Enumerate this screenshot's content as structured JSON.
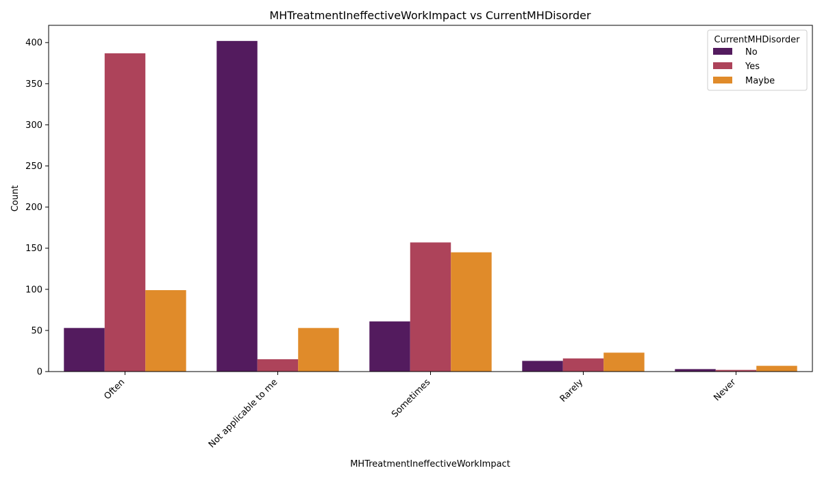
{
  "chart_data": {
    "type": "bar",
    "title": "MHTreatmentIneffectiveWorkImpact vs CurrentMHDisorder",
    "xlabel": "MHTreatmentIneffectiveWorkImpact",
    "ylabel": "Count",
    "categories": [
      "Often",
      "Not applicable to me",
      "Sometimes",
      "Rarely",
      "Never"
    ],
    "ylim": [
      0,
      421
    ],
    "yticks": [
      0,
      50,
      100,
      150,
      200,
      250,
      300,
      350,
      400
    ],
    "legend": {
      "title": "CurrentMHDisorder",
      "placement": "top-right"
    },
    "series": [
      {
        "name": "No",
        "color": "#531b5e",
        "values": [
          53,
          402,
          61,
          13,
          3
        ]
      },
      {
        "name": "Yes",
        "color": "#ad435a",
        "values": [
          387,
          15,
          157,
          16,
          2
        ]
      },
      {
        "name": "Maybe",
        "color": "#e08b2a",
        "values": [
          99,
          53,
          145,
          23,
          7
        ]
      }
    ],
    "grid": false
  }
}
